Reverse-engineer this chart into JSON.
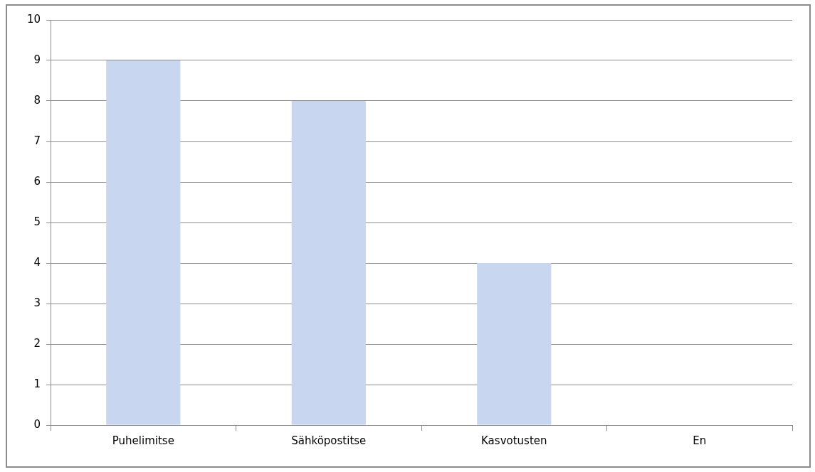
{
  "chart_data": {
    "type": "bar",
    "categories": [
      "Puhelimitse",
      "Sähköpostitse",
      "Kasvotusten",
      "En"
    ],
    "values": [
      9,
      8,
      4,
      0
    ],
    "color": "#c9d6ef",
    "ylim": [
      0,
      10
    ],
    "yticks": [
      0,
      1,
      2,
      3,
      4,
      5,
      6,
      7,
      8,
      9,
      10
    ],
    "grid": "y",
    "legend": false
  }
}
